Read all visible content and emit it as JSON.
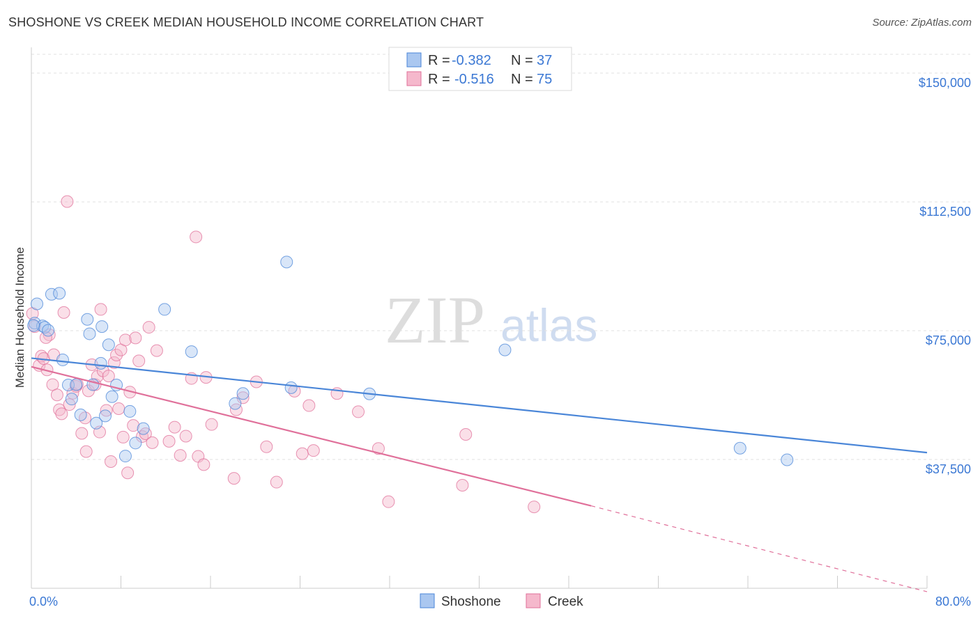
{
  "title": "SHOSHONE VS CREEK MEDIAN HOUSEHOLD INCOME CORRELATION CHART",
  "source": "Source: ZipAtlas.com",
  "watermark": {
    "zip": "ZIP",
    "atlas": "atlas"
  },
  "colors": {
    "shoshone": "#4a86d8",
    "shoshone_fill": "#aac7f0",
    "creek": "#e0709a",
    "creek_fill": "#f5b8cc",
    "tick_text": "#3b78d4",
    "grid": "#e0e0e0"
  },
  "legend": {
    "rows": [
      {
        "r_label": "R =",
        "r_value": "-0.382",
        "n_label": "N =",
        "n_value": "37"
      },
      {
        "r_label": "R =",
        "r_value": "-0.516",
        "n_label": "N =",
        "n_value": "75"
      }
    ]
  },
  "chart_data": {
    "type": "scatter",
    "title": "SHOSHONE VS CREEK MEDIAN HOUSEHOLD INCOME CORRELATION CHART",
    "xlabel": "",
    "ylabel": "Median Household Income",
    "xlim": [
      0,
      80
    ],
    "ylim": [
      0,
      157500
    ],
    "x_tick_labels": [
      "0.0%",
      "80.0%"
    ],
    "y_ticks": [
      {
        "value": 37500,
        "label": "$37,500"
      },
      {
        "value": 75000,
        "label": "$75,000"
      },
      {
        "value": 112500,
        "label": "$112,500"
      },
      {
        "value": 150000,
        "label": "$150,000"
      }
    ],
    "legend_position": "bottom",
    "series": [
      {
        "name": "Shoshone",
        "color": "#4a86d8",
        "fill": "#aac7f0",
        "points": [
          [
            0.3,
            77200
          ],
          [
            0.5,
            82800
          ],
          [
            1.0,
            76400
          ],
          [
            1.2,
            76000
          ],
          [
            1.5,
            75100
          ],
          [
            1.8,
            85600
          ],
          [
            2.5,
            85900
          ],
          [
            2.8,
            66500
          ],
          [
            3.3,
            59200
          ],
          [
            3.6,
            55100
          ],
          [
            4.0,
            59300
          ],
          [
            4.4,
            50500
          ],
          [
            5.0,
            78300
          ],
          [
            5.2,
            74100
          ],
          [
            5.5,
            59300
          ],
          [
            5.8,
            48100
          ],
          [
            6.2,
            65500
          ],
          [
            6.3,
            76200
          ],
          [
            6.6,
            50200
          ],
          [
            6.9,
            70900
          ],
          [
            7.2,
            55800
          ],
          [
            7.6,
            59200
          ],
          [
            8.4,
            38500
          ],
          [
            8.8,
            51500
          ],
          [
            9.3,
            42300
          ],
          [
            10.0,
            46500
          ],
          [
            11.9,
            81200
          ],
          [
            14.3,
            68900
          ],
          [
            18.2,
            53800
          ],
          [
            18.9,
            56700
          ],
          [
            22.8,
            95000
          ],
          [
            23.2,
            58400
          ],
          [
            30.2,
            56600
          ],
          [
            42.3,
            69400
          ],
          [
            63.3,
            40800
          ],
          [
            67.5,
            37400
          ],
          [
            0.2,
            76500
          ]
        ],
        "trend": {
          "x0": 0,
          "y0": 67000,
          "x1": 80,
          "y1": 39500
        }
      },
      {
        "name": "Creek",
        "color": "#e0709a",
        "fill": "#f5b8cc",
        "points": [
          [
            0.1,
            80000
          ],
          [
            0.3,
            76200
          ],
          [
            0.7,
            64900
          ],
          [
            0.9,
            67600
          ],
          [
            1.1,
            66900
          ],
          [
            1.4,
            63600
          ],
          [
            1.6,
            73800
          ],
          [
            1.9,
            59300
          ],
          [
            2.0,
            68000
          ],
          [
            2.3,
            56300
          ],
          [
            2.5,
            52000
          ],
          [
            2.7,
            50800
          ],
          [
            2.9,
            80300
          ],
          [
            3.4,
            53500
          ],
          [
            3.7,
            56800
          ],
          [
            4.0,
            58800
          ],
          [
            4.1,
            59400
          ],
          [
            4.5,
            45100
          ],
          [
            4.8,
            49600
          ],
          [
            4.9,
            39800
          ],
          [
            5.1,
            57500
          ],
          [
            5.4,
            65100
          ],
          [
            5.7,
            59300
          ],
          [
            5.9,
            61700
          ],
          [
            6.1,
            45500
          ],
          [
            6.2,
            81200
          ],
          [
            6.4,
            63300
          ],
          [
            6.7,
            51800
          ],
          [
            6.9,
            61800
          ],
          [
            7.1,
            36900
          ],
          [
            7.4,
            65700
          ],
          [
            7.6,
            67900
          ],
          [
            7.8,
            52300
          ],
          [
            8.0,
            69400
          ],
          [
            8.2,
            44000
          ],
          [
            8.4,
            72300
          ],
          [
            8.6,
            33600
          ],
          [
            8.8,
            57100
          ],
          [
            9.1,
            47400
          ],
          [
            9.3,
            72900
          ],
          [
            9.6,
            66200
          ],
          [
            9.9,
            44200
          ],
          [
            10.2,
            45000
          ],
          [
            10.5,
            76000
          ],
          [
            10.8,
            42400
          ],
          [
            11.2,
            69200
          ],
          [
            12.3,
            42800
          ],
          [
            12.8,
            46900
          ],
          [
            13.3,
            38700
          ],
          [
            13.8,
            44300
          ],
          [
            14.3,
            61100
          ],
          [
            14.7,
            102300
          ],
          [
            14.9,
            38400
          ],
          [
            15.4,
            36000
          ],
          [
            15.6,
            61400
          ],
          [
            16.1,
            47700
          ],
          [
            18.1,
            32000
          ],
          [
            18.3,
            52000
          ],
          [
            18.9,
            55500
          ],
          [
            20.1,
            60100
          ],
          [
            21.0,
            41200
          ],
          [
            21.9,
            30900
          ],
          [
            23.5,
            57400
          ],
          [
            24.2,
            39200
          ],
          [
            24.8,
            53200
          ],
          [
            25.2,
            40100
          ],
          [
            27.3,
            56700
          ],
          [
            29.2,
            51400
          ],
          [
            31.0,
            40700
          ],
          [
            31.9,
            25200
          ],
          [
            38.5,
            30000
          ],
          [
            38.8,
            44800
          ],
          [
            44.9,
            23700
          ],
          [
            3.2,
            112600
          ],
          [
            1.3,
            73000
          ]
        ],
        "trend": {
          "x0": 0,
          "y0": 64500,
          "x1": 50,
          "y1": 24000
        },
        "trend_dashed": {
          "x0": 50,
          "y0": 24000,
          "x1": 80,
          "y1": -1000
        }
      }
    ]
  }
}
